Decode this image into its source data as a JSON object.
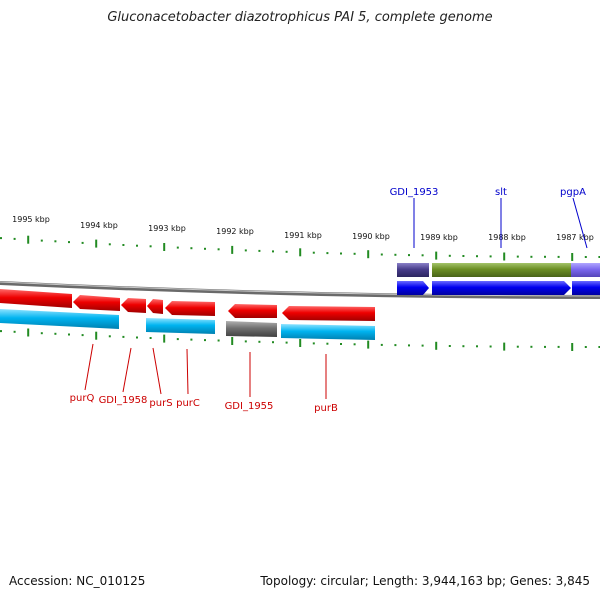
{
  "title": "Gluconacetobacter diazotrophicus PAI 5, complete genome",
  "footer": {
    "accession": "Accession: NC_010125",
    "summary": "Topology: circular; Length: 3,944,163 bp; Genes: 3,845"
  },
  "colors": {
    "forward_gene": "#0000ee",
    "reverse_gene": "#ee0000",
    "cds_light_blue": "#00b4f0",
    "pseudo_gray": "#707070",
    "green_feature": "#6b8e23",
    "purple_feature": "#7b68ee",
    "dark_feature": "#483d8b",
    "tick": "#228b22",
    "backbone": "#808080",
    "label_forward": "#0000cc",
    "label_reverse": "#cc0000"
  },
  "ticks": [
    {
      "label": "1995 kbp"
    },
    {
      "label": "1994 kbp"
    },
    {
      "label": "1993 kbp"
    },
    {
      "label": "1992 kbp"
    },
    {
      "label": "1991 kbp"
    },
    {
      "label": "1990 kbp"
    },
    {
      "label": "1989 kbp"
    },
    {
      "label": "1988 kbp"
    },
    {
      "label": "1987 kbp"
    }
  ],
  "gene_labels_top": [
    {
      "label": "GDI_1953"
    },
    {
      "label": "slt"
    },
    {
      "label": "pgpA"
    }
  ],
  "gene_labels_bottom": [
    {
      "label": "purQ"
    },
    {
      "label": "GDI_1958"
    },
    {
      "label": "purS"
    },
    {
      "label": "purC"
    },
    {
      "label": "GDI_1955"
    },
    {
      "label": "purB"
    }
  ]
}
